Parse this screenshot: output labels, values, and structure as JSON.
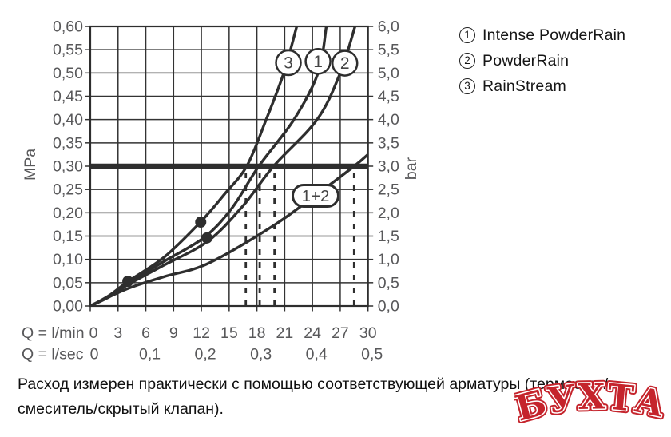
{
  "legend": {
    "items": [
      {
        "symbol": "1",
        "label": "Intense PowderRain"
      },
      {
        "symbol": "2",
        "label": "PowderRain"
      },
      {
        "symbol": "3",
        "label": "RainStream"
      }
    ]
  },
  "caption": {
    "line1": "Расход измерен практически с помощью соответствующей арматуры (термостат/",
    "line2": "смеситель/скрытый клапан)."
  },
  "watermark": {
    "text": "БУХТА",
    "color": "#c5242c"
  },
  "colors": {
    "ink": "#2e2e2e",
    "tick_text": "#58585a",
    "background": "#ffffff"
  },
  "chart_data": {
    "type": "line",
    "title": "",
    "x_axis": {
      "xlim": [
        0,
        30
      ],
      "rows": [
        {
          "label": "Q = l/min",
          "tick_values": [
            0,
            3,
            6,
            9,
            12,
            15,
            18,
            21,
            24,
            27,
            30
          ],
          "tick_labels": [
            "0",
            "3",
            "6",
            "9",
            "12",
            "15",
            "18",
            "21",
            "24",
            "27",
            "30"
          ]
        },
        {
          "label": "Q = l/sec",
          "tick_values": [
            0,
            0.1,
            0.2,
            0.3,
            0.4,
            0.5
          ],
          "tick_labels": [
            "0",
            "0,1",
            "0,2",
            "0,3",
            "0,4",
            "0,5"
          ],
          "positions_lmin": [
            0,
            6,
            12,
            18,
            24,
            30
          ]
        }
      ]
    },
    "y_axis_left": {
      "unit": "MPa",
      "ylim": [
        0,
        0.6
      ],
      "step": 0.05,
      "tick_labels": [
        "0,00",
        "0,05",
        "0,10",
        "0,15",
        "0,20",
        "0,25",
        "0,30",
        "0,35",
        "0,40",
        "0,45",
        "0,50",
        "0,55",
        "0,60"
      ]
    },
    "y_axis_right": {
      "unit": "bar",
      "ylim": [
        0,
        6
      ],
      "step": 0.5,
      "tick_labels": [
        "0,0",
        "0,5",
        "1,0",
        "1,5",
        "2,0",
        "2,5",
        "3,0",
        "3,5",
        "4,0",
        "4,5",
        "5,0",
        "5,5",
        "6,0"
      ]
    },
    "grid": {
      "on": true,
      "x_step_lmin": 3,
      "y_step_mpa": 0.05
    },
    "reference_line": {
      "value_mpa": 0.3,
      "value_bar": 3.0
    },
    "series": [
      {
        "id": "3",
        "name": "RainStream",
        "points_lmin_mpa": [
          [
            0,
            0
          ],
          [
            2,
            0.022
          ],
          [
            4.1,
            0.053
          ],
          [
            8,
            0.105
          ],
          [
            11.9,
            0.18
          ],
          [
            14.5,
            0.24
          ],
          [
            16.9,
            0.3
          ],
          [
            19,
            0.4
          ],
          [
            20.9,
            0.5
          ],
          [
            22.3,
            0.6
          ]
        ],
        "label": {
          "text": "3",
          "at": [
            21.4,
            0.522
          ],
          "shape": "circle"
        }
      },
      {
        "id": "1",
        "name": "Intense PowderRain",
        "points_lmin_mpa": [
          [
            0,
            0
          ],
          [
            2,
            0.02
          ],
          [
            4.1,
            0.049
          ],
          [
            8,
            0.096
          ],
          [
            12.3,
            0.147
          ],
          [
            15.3,
            0.21
          ],
          [
            18.2,
            0.3
          ],
          [
            22,
            0.4
          ],
          [
            24.6,
            0.5
          ],
          [
            25.5,
            0.6
          ]
        ],
        "label": {
          "text": "1",
          "at": [
            24.6,
            0.525
          ],
          "shape": "circle"
        }
      },
      {
        "id": "2",
        "name": "PowderRain",
        "points_lmin_mpa": [
          [
            0,
            0
          ],
          [
            2,
            0.019
          ],
          [
            4.1,
            0.046
          ],
          [
            8,
            0.088
          ],
          [
            12.7,
            0.139
          ],
          [
            16.5,
            0.215
          ],
          [
            19.8,
            0.3
          ],
          [
            24.5,
            0.4
          ],
          [
            27.0,
            0.5
          ],
          [
            28.6,
            0.6
          ]
        ],
        "label": {
          "text": "2",
          "at": [
            27.5,
            0.521
          ],
          "shape": "circle"
        }
      },
      {
        "id": "1+2",
        "name": "Intense PowderRain + PowderRain",
        "points_lmin_mpa": [
          [
            0,
            0
          ],
          [
            4,
            0.037
          ],
          [
            8,
            0.063
          ],
          [
            12.7,
            0.091
          ],
          [
            19.6,
            0.17
          ],
          [
            24.3,
            0.237
          ],
          [
            28.5,
            0.3
          ],
          [
            30.1,
            0.327
          ]
        ],
        "label": {
          "text": "1+2",
          "at": [
            24.33,
            0.2366
          ],
          "shape": "stadium"
        }
      }
    ],
    "dashed_guides_lmin": [
      16.8,
      18.3,
      19.9,
      28.5
    ],
    "marker_points_lmin_mpa": [
      [
        4.06,
        0.053
      ],
      [
        11.93,
        0.18
      ],
      [
        12.6,
        0.146
      ]
    ]
  }
}
